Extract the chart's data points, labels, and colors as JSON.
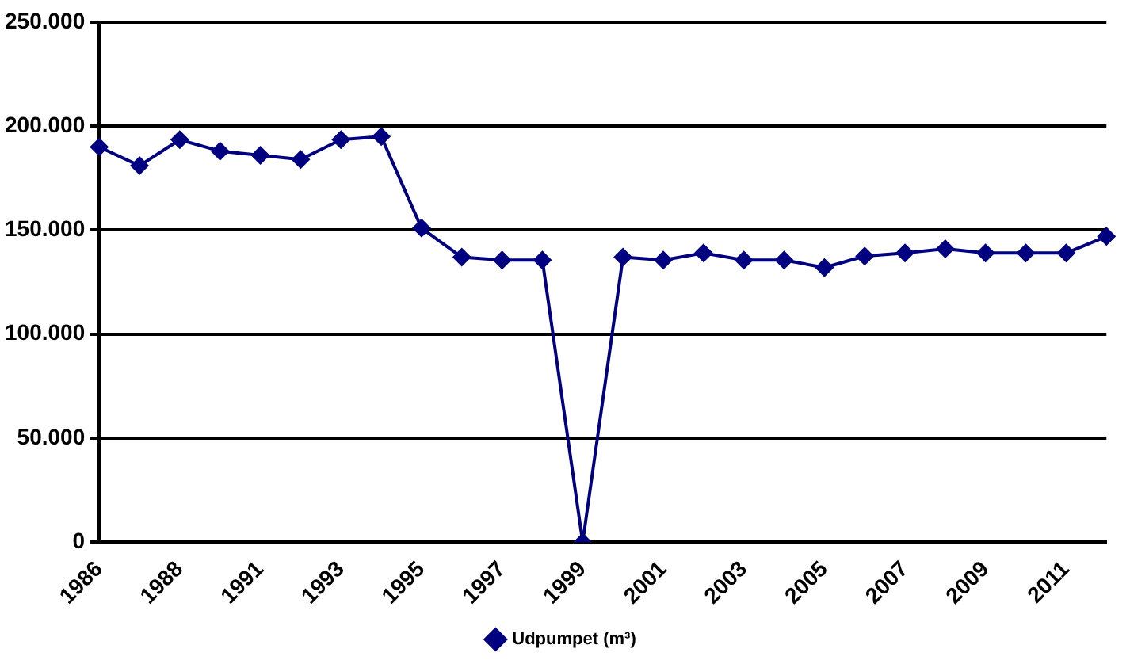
{
  "chart_data": {
    "type": "line",
    "categories": [
      "1986",
      null,
      "1988",
      null,
      "1991",
      null,
      "1993",
      null,
      "1995",
      null,
      "1997",
      null,
      "1999",
      null,
      "2001",
      null,
      "2003",
      null,
      "2005",
      null,
      "2007",
      null,
      "2009",
      null,
      "2011",
      null
    ],
    "series": [
      {
        "name": "Udpumpet (m³)",
        "color": "#000080",
        "values": [
          190000,
          181000,
          193500,
          188000,
          186000,
          184000,
          193500,
          195000,
          151000,
          137000,
          135600,
          135600,
          0,
          137000,
          135600,
          139000,
          135600,
          135600,
          132000,
          137500,
          139000,
          141000,
          139000,
          139000,
          139000,
          147000
        ]
      }
    ],
    "ylim": [
      0,
      250000
    ],
    "yticks": [
      {
        "value": 0,
        "label": "0"
      },
      {
        "value": 50000,
        "label": "50.000"
      },
      {
        "value": 100000,
        "label": "100.000"
      },
      {
        "value": 150000,
        "label": "150.000"
      },
      {
        "value": 200000,
        "label": "200.000"
      },
      {
        "value": 250000,
        "label": "250.000"
      }
    ],
    "grid": "y",
    "legend": "bottom",
    "marker": "diamond",
    "line_style": "solid"
  }
}
